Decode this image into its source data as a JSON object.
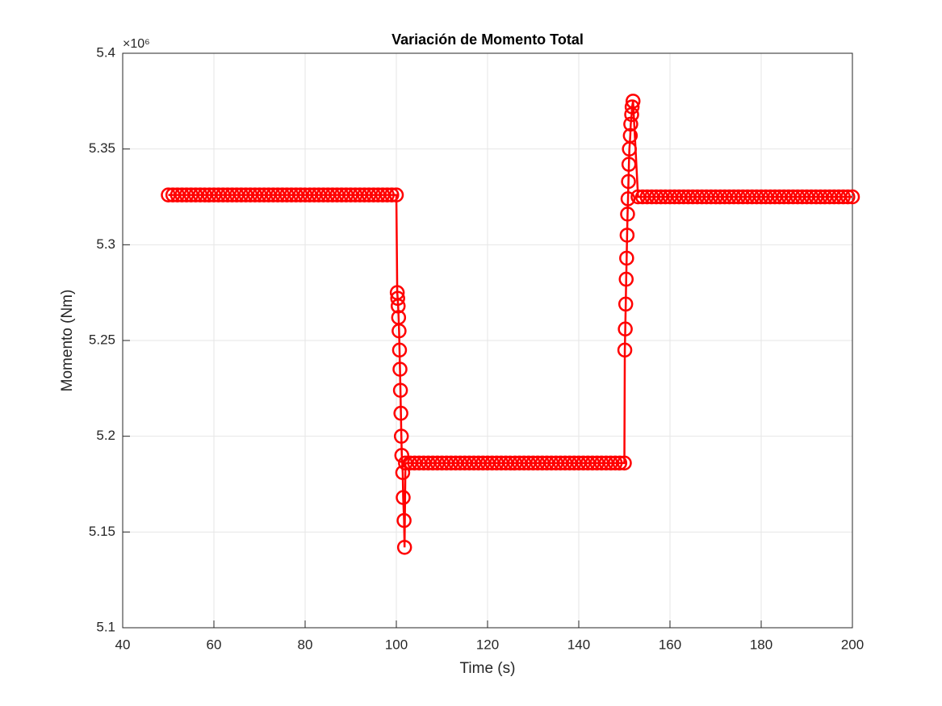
{
  "chart_data": {
    "type": "line",
    "title": "Variación de Momento Total",
    "x_label": "Time (s)",
    "y_label": "Momento (Nm)",
    "y_multiplier": "×10⁶",
    "x": [
      50,
      51,
      52,
      53,
      54,
      55,
      56,
      57,
      58,
      59,
      60,
      61,
      62,
      63,
      64,
      65,
      66,
      67,
      68,
      69,
      70,
      71,
      72,
      73,
      74,
      75,
      76,
      77,
      78,
      79,
      80,
      81,
      82,
      83,
      84,
      85,
      86,
      87,
      88,
      89,
      90,
      91,
      92,
      93,
      94,
      95,
      96,
      97,
      98,
      99,
      100,
      100.2,
      100.3,
      100.4,
      100.5,
      100.6,
      100.7,
      100.8,
      100.9,
      101.0,
      101.1,
      101.2,
      101.4,
      101.5,
      101.7,
      101.8,
      102,
      103,
      104,
      105,
      106,
      107,
      108,
      109,
      110,
      111,
      112,
      113,
      114,
      115,
      116,
      117,
      118,
      119,
      120,
      121,
      122,
      123,
      124,
      125,
      126,
      127,
      128,
      129,
      130,
      131,
      132,
      133,
      134,
      135,
      136,
      137,
      138,
      139,
      140,
      141,
      142,
      143,
      144,
      145,
      146,
      147,
      148,
      149,
      150,
      150.1,
      150.2,
      150.3,
      150.4,
      150.5,
      150.6,
      150.7,
      150.8,
      150.9,
      151.0,
      151.1,
      151.3,
      151.4,
      151.6,
      151.7,
      151.9,
      153,
      154,
      155,
      156,
      157,
      158,
      159,
      160,
      161,
      162,
      163,
      164,
      165,
      166,
      167,
      168,
      169,
      170,
      171,
      172,
      173,
      174,
      175,
      176,
      177,
      178,
      179,
      180,
      181,
      182,
      183,
      184,
      185,
      186,
      187,
      188,
      189,
      190,
      191,
      192,
      193,
      194,
      195,
      196,
      197,
      198,
      199,
      200
    ],
    "series": [
      {
        "color": "#ff0000",
        "marker": "o",
        "values": [
          5.326,
          5.326,
          5.326,
          5.326,
          5.326,
          5.326,
          5.326,
          5.326,
          5.326,
          5.326,
          5.326,
          5.326,
          5.326,
          5.326,
          5.326,
          5.326,
          5.326,
          5.326,
          5.326,
          5.326,
          5.326,
          5.326,
          5.326,
          5.326,
          5.326,
          5.326,
          5.326,
          5.326,
          5.326,
          5.326,
          5.326,
          5.326,
          5.326,
          5.326,
          5.326,
          5.326,
          5.326,
          5.326,
          5.326,
          5.326,
          5.326,
          5.326,
          5.326,
          5.326,
          5.326,
          5.326,
          5.326,
          5.326,
          5.326,
          5.326,
          5.326,
          5.275,
          5.272,
          5.268,
          5.262,
          5.255,
          5.245,
          5.235,
          5.224,
          5.212,
          5.2,
          5.19,
          5.181,
          5.168,
          5.156,
          5.142,
          5.186,
          5.186,
          5.186,
          5.186,
          5.186,
          5.186,
          5.186,
          5.186,
          5.186,
          5.186,
          5.186,
          5.186,
          5.186,
          5.186,
          5.186,
          5.186,
          5.186,
          5.186,
          5.186,
          5.186,
          5.186,
          5.186,
          5.186,
          5.186,
          5.186,
          5.186,
          5.186,
          5.186,
          5.186,
          5.186,
          5.186,
          5.186,
          5.186,
          5.186,
          5.186,
          5.186,
          5.186,
          5.186,
          5.186,
          5.186,
          5.186,
          5.186,
          5.186,
          5.186,
          5.186,
          5.186,
          5.186,
          5.186,
          5.186,
          5.245,
          5.256,
          5.269,
          5.282,
          5.293,
          5.305,
          5.316,
          5.324,
          5.333,
          5.342,
          5.35,
          5.357,
          5.363,
          5.368,
          5.372,
          5.375,
          5.325,
          5.325,
          5.325,
          5.325,
          5.325,
          5.325,
          5.325,
          5.325,
          5.325,
          5.325,
          5.325,
          5.325,
          5.325,
          5.325,
          5.325,
          5.325,
          5.325,
          5.325,
          5.325,
          5.325,
          5.325,
          5.325,
          5.325,
          5.325,
          5.325,
          5.325,
          5.325,
          5.325,
          5.325,
          5.325,
          5.325,
          5.325,
          5.325,
          5.325,
          5.325,
          5.325,
          5.325,
          5.325,
          5.325,
          5.325,
          5.325,
          5.325,
          5.325,
          5.325,
          5.325,
          5.325,
          5.325,
          5.325
        ]
      }
    ],
    "xlim": [
      40,
      200
    ],
    "xticks": [
      40,
      60,
      80,
      100,
      120,
      140,
      160,
      180,
      200
    ],
    "ylim": [
      5.1,
      5.4
    ],
    "yticks": [
      5.1,
      5.15,
      5.2,
      5.25,
      5.3,
      5.35,
      5.4
    ],
    "grid": true
  }
}
